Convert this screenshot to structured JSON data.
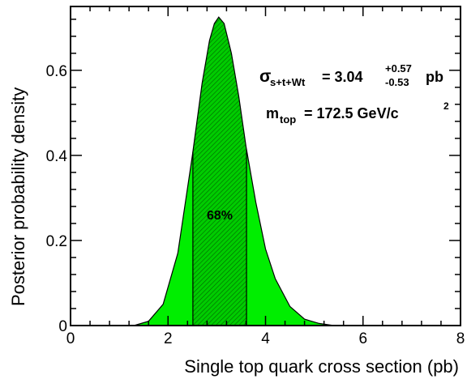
{
  "chart_data": {
    "type": "area",
    "xlabel": "Single top quark cross section (pb)",
    "ylabel": "Posterior probability density",
    "xlim": [
      0,
      8
    ],
    "ylim": [
      0,
      0.75
    ],
    "x_ticks": [
      "0",
      "2",
      "4",
      "6",
      "8"
    ],
    "y_ticks": [
      "0",
      "0.2",
      "0.4",
      "0.6"
    ],
    "grid": false,
    "fill_color": "#00ee00",
    "band_color": "#009900",
    "series": [
      {
        "x": [
          1.3,
          1.6,
          1.9,
          2.2,
          2.5,
          2.7,
          2.85,
          2.95,
          3.04,
          3.15,
          3.3,
          3.45,
          3.6,
          3.8,
          4.0,
          4.2,
          4.5,
          4.8,
          5.1,
          5.4
        ],
        "y": [
          0.0,
          0.01,
          0.05,
          0.17,
          0.4,
          0.57,
          0.67,
          0.71,
          0.725,
          0.71,
          0.64,
          0.54,
          0.42,
          0.29,
          0.18,
          0.11,
          0.045,
          0.015,
          0.005,
          0.0
        ]
      }
    ],
    "band": {
      "label": "68%",
      "low": 2.51,
      "high": 3.61
    },
    "annotations": {
      "sigma_symbol": "σ",
      "sigma_sub": "s+t+Wt",
      "sigma_value": "= 3.04",
      "sigma_plus": "+0.57",
      "sigma_minus": "-0.53",
      "sigma_unit": "pb",
      "mass_label": "m",
      "mass_sub": "top",
      "mass_value": "= 172.5 GeV/c",
      "mass_sup": "2"
    }
  }
}
